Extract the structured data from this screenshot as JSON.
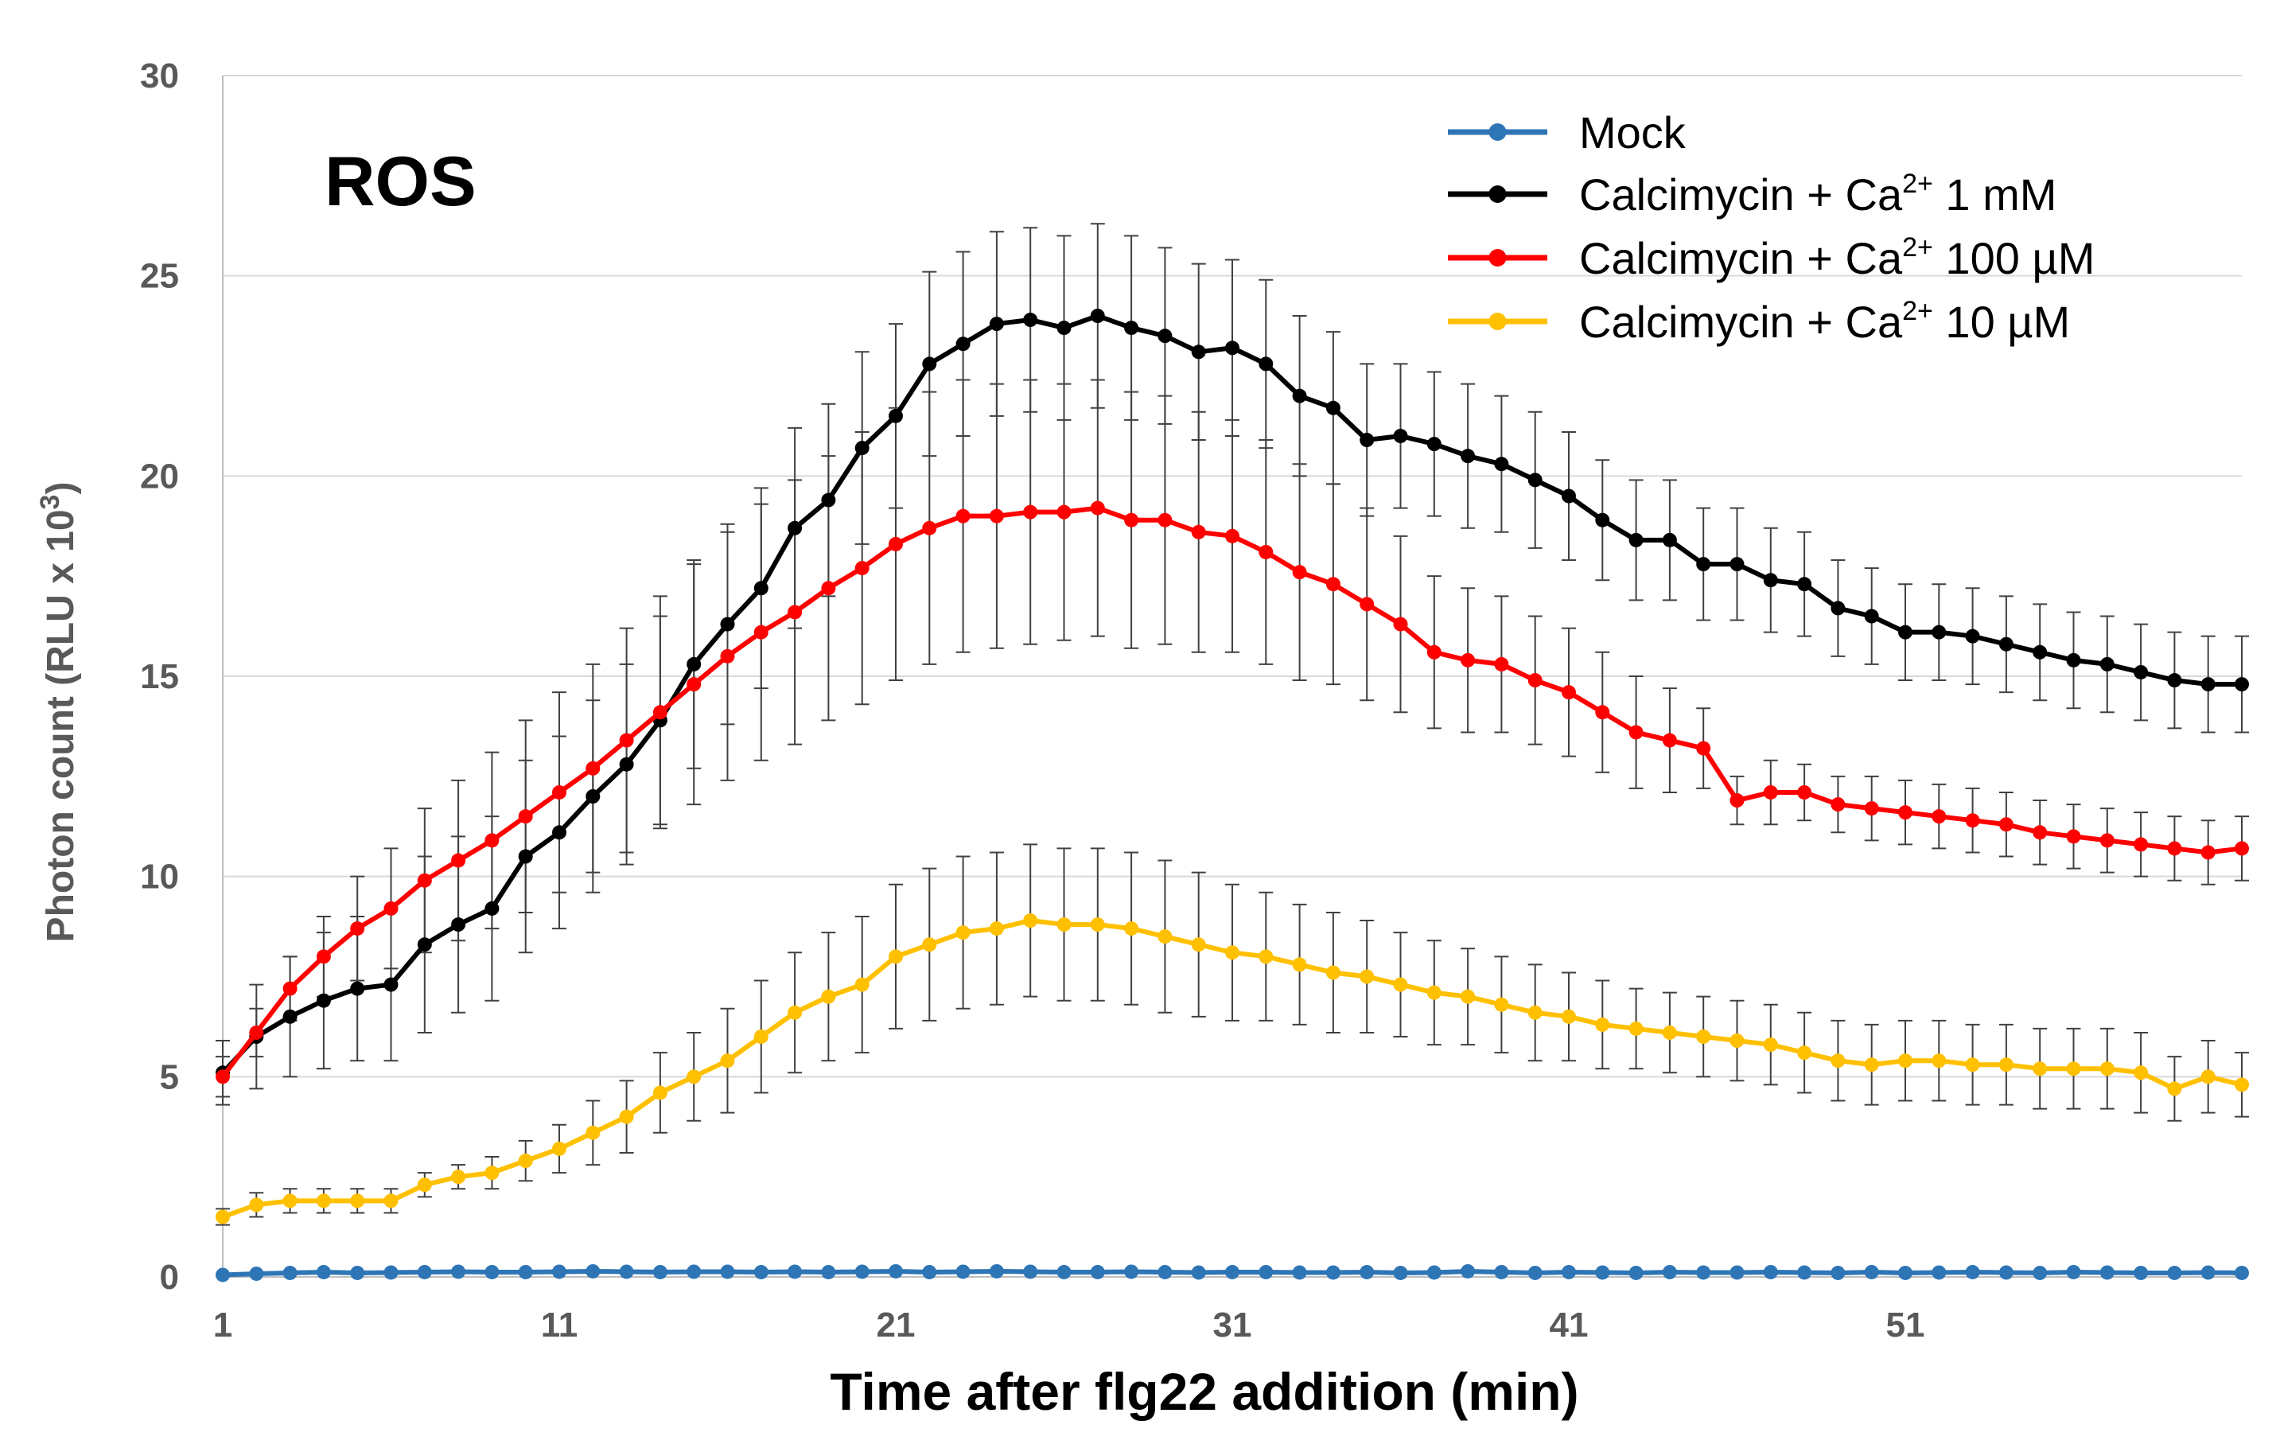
{
  "chart_data": {
    "type": "line",
    "title": "ROS",
    "xlabel": "Time after flg22 addition (min)",
    "ylabel": {
      "main": "Photon count (RLU x 10",
      "sup": "3",
      "close": ")"
    },
    "x": [
      1,
      2,
      3,
      4,
      5,
      6,
      7,
      8,
      9,
      10,
      11,
      12,
      13,
      14,
      15,
      16,
      17,
      18,
      19,
      20,
      21,
      22,
      23,
      24,
      25,
      26,
      27,
      28,
      29,
      30,
      31,
      32,
      33,
      34,
      35,
      36,
      37,
      38,
      39,
      40,
      41,
      42,
      43,
      44,
      45,
      46,
      47,
      48,
      49,
      50,
      51,
      52,
      53,
      54,
      55,
      56,
      57,
      58,
      59,
      60,
      61
    ],
    "xlim": [
      1,
      61
    ],
    "ylim": [
      0,
      30
    ],
    "x_ticks": [
      "1",
      "11",
      "21",
      "31",
      "41",
      "51"
    ],
    "x_tick_values": [
      1,
      11,
      21,
      31,
      41,
      51
    ],
    "y_ticks": [
      "0",
      "5",
      "10",
      "15",
      "20",
      "25",
      "30"
    ],
    "y_tick_values": [
      0,
      5,
      10,
      15,
      20,
      25,
      30
    ],
    "grid": "horizontal",
    "legend_position": "top-right",
    "series": [
      {
        "name": "Mock",
        "label": {
          "pre": "Mock",
          "sup": "",
          "post": ""
        },
        "color": "#2E75B6",
        "values": [
          0.05,
          0.08,
          0.1,
          0.12,
          0.1,
          0.11,
          0.12,
          0.13,
          0.12,
          0.12,
          0.13,
          0.14,
          0.13,
          0.12,
          0.13,
          0.13,
          0.12,
          0.13,
          0.12,
          0.13,
          0.14,
          0.12,
          0.13,
          0.14,
          0.13,
          0.12,
          0.12,
          0.13,
          0.12,
          0.11,
          0.12,
          0.12,
          0.11,
          0.11,
          0.12,
          0.1,
          0.11,
          0.14,
          0.12,
          0.1,
          0.12,
          0.11,
          0.1,
          0.12,
          0.11,
          0.11,
          0.12,
          0.11,
          0.1,
          0.12,
          0.1,
          0.11,
          0.12,
          0.11,
          0.1,
          0.12,
          0.11,
          0.1,
          0.1,
          0.11,
          0.1
        ],
        "errors": []
      },
      {
        "name": "Calcimycin + Ca2+ 1 mM",
        "label": {
          "pre": "Calcimycin  + Ca",
          "sup": "2+",
          "post": " 1 mM"
        },
        "color": "#000000",
        "values": [
          5.1,
          6.0,
          6.5,
          6.9,
          7.2,
          7.3,
          8.3,
          8.8,
          9.2,
          10.5,
          11.1,
          12.0,
          12.8,
          13.9,
          15.3,
          16.3,
          17.2,
          18.7,
          19.4,
          20.7,
          21.5,
          22.8,
          23.3,
          23.8,
          23.9,
          23.7,
          24.0,
          23.7,
          23.5,
          23.1,
          23.2,
          22.8,
          22.0,
          21.7,
          20.9,
          21.0,
          20.8,
          20.5,
          20.3,
          19.9,
          19.5,
          18.9,
          18.4,
          18.4,
          17.8,
          17.8,
          17.4,
          17.3,
          16.7,
          16.5,
          16.1,
          16.1,
          16.0,
          15.8,
          15.6,
          15.4,
          15.3,
          15.1,
          14.9,
          14.8,
          14.8
        ],
        "errors": [
          0.8,
          1.3,
          1.5,
          1.7,
          1.8,
          1.9,
          2.2,
          2.2,
          2.3,
          2.4,
          2.4,
          2.4,
          2.5,
          2.6,
          2.6,
          2.5,
          2.5,
          2.5,
          2.4,
          2.4,
          2.3,
          2.3,
          2.3,
          2.3,
          2.3,
          2.3,
          2.3,
          2.3,
          2.2,
          2.2,
          2.2,
          2.1,
          2.0,
          1.9,
          1.9,
          1.8,
          1.8,
          1.8,
          1.7,
          1.7,
          1.6,
          1.5,
          1.5,
          1.5,
          1.4,
          1.4,
          1.3,
          1.3,
          1.2,
          1.2,
          1.2,
          1.2,
          1.2,
          1.2,
          1.2,
          1.2,
          1.2,
          1.2,
          1.2,
          1.2,
          1.2
        ]
      },
      {
        "name": "Calcimycin + Ca2+ 100 µM",
        "label": {
          "pre": "Calcimycin  + Ca",
          "sup": "2+",
          "post": " 100 µM"
        },
        "color": "#FF0000",
        "values": [
          5.0,
          6.1,
          7.2,
          8.0,
          8.7,
          9.2,
          9.9,
          10.4,
          10.9,
          11.5,
          12.1,
          12.7,
          13.4,
          14.1,
          14.8,
          15.5,
          16.1,
          16.6,
          17.2,
          17.7,
          18.3,
          18.7,
          19.0,
          19.0,
          19.1,
          19.1,
          19.2,
          18.9,
          18.9,
          18.6,
          18.5,
          18.1,
          17.6,
          17.3,
          16.8,
          16.3,
          15.6,
          15.4,
          15.3,
          14.9,
          14.6,
          14.1,
          13.6,
          13.4,
          13.2,
          11.9,
          12.1,
          12.1,
          11.8,
          11.7,
          11.6,
          11.5,
          11.4,
          11.3,
          11.1,
          11.0,
          10.9,
          10.8,
          10.7,
          10.6,
          10.7
        ],
        "errors": [
          0.5,
          0.6,
          0.8,
          1.0,
          1.3,
          1.5,
          1.8,
          2.0,
          2.2,
          2.4,
          2.5,
          2.6,
          2.8,
          2.9,
          3.0,
          3.1,
          3.2,
          3.3,
          3.3,
          3.4,
          3.4,
          3.4,
          3.4,
          3.3,
          3.3,
          3.2,
          3.2,
          3.2,
          3.1,
          3.0,
          2.9,
          2.8,
          2.7,
          2.5,
          2.4,
          2.2,
          1.9,
          1.8,
          1.7,
          1.6,
          1.6,
          1.5,
          1.4,
          1.3,
          1.0,
          0.6,
          0.8,
          0.7,
          0.7,
          0.8,
          0.8,
          0.8,
          0.8,
          0.8,
          0.8,
          0.8,
          0.8,
          0.8,
          0.8,
          0.8,
          0.8
        ]
      },
      {
        "name": "Calcimycin + Ca2+ 10 µM",
        "label": {
          "pre": "Calcimycin  + Ca",
          "sup": "2+",
          "post": " 10 µM"
        },
        "color": "#FFC000",
        "values": [
          1.5,
          1.8,
          1.9,
          1.9,
          1.9,
          1.9,
          2.3,
          2.5,
          2.6,
          2.9,
          3.2,
          3.6,
          4.0,
          4.6,
          5.0,
          5.4,
          6.0,
          6.6,
          7.0,
          7.3,
          8.0,
          8.3,
          8.6,
          8.7,
          8.9,
          8.8,
          8.8,
          8.7,
          8.5,
          8.3,
          8.1,
          8.0,
          7.8,
          7.6,
          7.5,
          7.3,
          7.1,
          7.0,
          6.8,
          6.6,
          6.5,
          6.3,
          6.2,
          6.1,
          6.0,
          5.9,
          5.8,
          5.6,
          5.4,
          5.3,
          5.4,
          5.4,
          5.3,
          5.3,
          5.2,
          5.2,
          5.2,
          5.1,
          4.7,
          5.0,
          4.8
        ],
        "errors": [
          0.2,
          0.3,
          0.3,
          0.3,
          0.3,
          0.3,
          0.3,
          0.3,
          0.4,
          0.5,
          0.6,
          0.8,
          0.9,
          1.0,
          1.1,
          1.3,
          1.4,
          1.5,
          1.6,
          1.7,
          1.8,
          1.9,
          1.9,
          1.9,
          1.9,
          1.9,
          1.9,
          1.9,
          1.9,
          1.8,
          1.7,
          1.6,
          1.5,
          1.5,
          1.4,
          1.3,
          1.3,
          1.2,
          1.2,
          1.2,
          1.1,
          1.1,
          1.0,
          1.0,
          1.0,
          1.0,
          1.0,
          1.0,
          1.0,
          1.0,
          1.0,
          1.0,
          1.0,
          1.0,
          1.0,
          1.0,
          1.0,
          1.0,
          0.8,
          0.9,
          0.8
        ]
      }
    ]
  }
}
